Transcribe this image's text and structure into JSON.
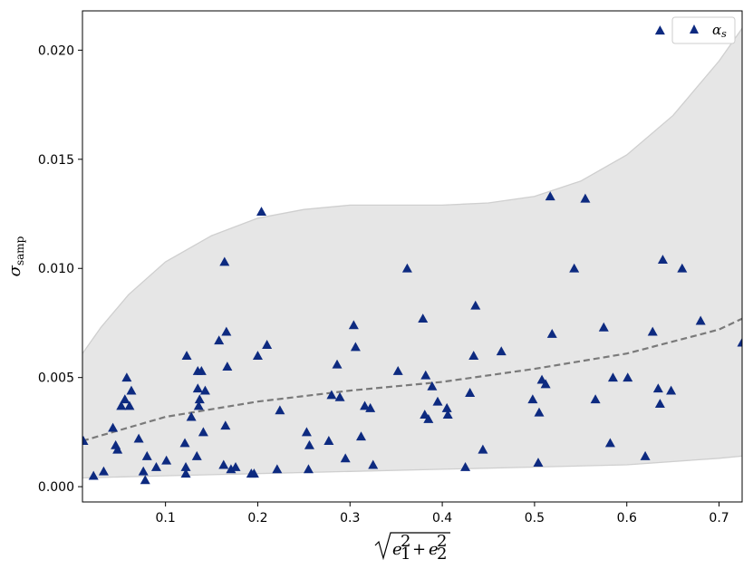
{
  "chart_data": {
    "type": "scatter",
    "title": "",
    "xlabel": "√(e₁² + e₂²)",
    "ylabel": "σ_samp",
    "xlim": [
      0.01,
      0.725
    ],
    "ylim": [
      -0.0007,
      0.0218
    ],
    "x_ticks": [
      0.1,
      0.2,
      0.3,
      0.4,
      0.5,
      0.6,
      0.7
    ],
    "x_tick_labels": [
      "0.1",
      "0.2",
      "0.3",
      "0.4",
      "0.5",
      "0.6",
      "0.7"
    ],
    "y_ticks": [
      0.0,
      0.005,
      0.01,
      0.015,
      0.02
    ],
    "y_tick_labels": [
      "0.000",
      "0.005",
      "0.010",
      "0.015",
      "0.020"
    ],
    "legend": {
      "position": "top-right",
      "entries": [
        {
          "label": "α_s",
          "marker": "triangle",
          "color": "#0d2a80"
        }
      ]
    },
    "colors": {
      "marker": "#0d2a80",
      "band_fill": "#e6e6e6",
      "band_edge": "#cfcfcf",
      "trend_line": "#7a7a7a"
    },
    "series": [
      {
        "name": "α_s",
        "marker": "triangle",
        "points": [
          [
            0.011,
            0.0021
          ],
          [
            0.022,
            0.0005
          ],
          [
            0.033,
            0.0007
          ],
          [
            0.043,
            0.0027
          ],
          [
            0.046,
            0.0019
          ],
          [
            0.048,
            0.0017
          ],
          [
            0.052,
            0.0037
          ],
          [
            0.056,
            0.004
          ],
          [
            0.058,
            0.005
          ],
          [
            0.061,
            0.0037
          ],
          [
            0.063,
            0.0044
          ],
          [
            0.071,
            0.0022
          ],
          [
            0.076,
            0.0007
          ],
          [
            0.078,
            0.0003
          ],
          [
            0.08,
            0.0014
          ],
          [
            0.09,
            0.0009
          ],
          [
            0.101,
            0.0012
          ],
          [
            0.121,
            0.002
          ],
          [
            0.122,
            0.0009
          ],
          [
            0.122,
            0.0006
          ],
          [
            0.123,
            0.006
          ],
          [
            0.128,
            0.0032
          ],
          [
            0.134,
            0.0014
          ],
          [
            0.135,
            0.0053
          ],
          [
            0.135,
            0.0045
          ],
          [
            0.136,
            0.0037
          ],
          [
            0.137,
            0.004
          ],
          [
            0.139,
            0.0053
          ],
          [
            0.141,
            0.0025
          ],
          [
            0.143,
            0.0044
          ],
          [
            0.158,
            0.0067
          ],
          [
            0.163,
            0.001
          ],
          [
            0.164,
            0.0103
          ],
          [
            0.165,
            0.0028
          ],
          [
            0.166,
            0.0071
          ],
          [
            0.167,
            0.0055
          ],
          [
            0.171,
            0.0008
          ],
          [
            0.176,
            0.0009
          ],
          [
            0.193,
            0.0006
          ],
          [
            0.196,
            0.0006
          ],
          [
            0.2,
            0.006
          ],
          [
            0.204,
            0.0126
          ],
          [
            0.21,
            0.0065
          ],
          [
            0.221,
            0.0008
          ],
          [
            0.224,
            0.0035
          ],
          [
            0.253,
            0.0025
          ],
          [
            0.255,
            0.0008
          ],
          [
            0.256,
            0.0019
          ],
          [
            0.277,
            0.0021
          ],
          [
            0.28,
            0.0042
          ],
          [
            0.286,
            0.0056
          ],
          [
            0.289,
            0.0041
          ],
          [
            0.295,
            0.0013
          ],
          [
            0.304,
            0.0074
          ],
          [
            0.306,
            0.0064
          ],
          [
            0.312,
            0.0023
          ],
          [
            0.316,
            0.0037
          ],
          [
            0.322,
            0.0036
          ],
          [
            0.325,
            0.001
          ],
          [
            0.352,
            0.0053
          ],
          [
            0.362,
            0.01
          ],
          [
            0.379,
            0.0077
          ],
          [
            0.381,
            0.0033
          ],
          [
            0.382,
            0.0051
          ],
          [
            0.385,
            0.0031
          ],
          [
            0.389,
            0.0046
          ],
          [
            0.395,
            0.0039
          ],
          [
            0.405,
            0.0036
          ],
          [
            0.406,
            0.0033
          ],
          [
            0.425,
            0.0009
          ],
          [
            0.43,
            0.0043
          ],
          [
            0.434,
            0.006
          ],
          [
            0.436,
            0.0083
          ],
          [
            0.444,
            0.0017
          ],
          [
            0.464,
            0.0062
          ],
          [
            0.498,
            0.004
          ],
          [
            0.504,
            0.0011
          ],
          [
            0.505,
            0.0034
          ],
          [
            0.508,
            0.0049
          ],
          [
            0.512,
            0.0047
          ],
          [
            0.517,
            0.0133
          ],
          [
            0.519,
            0.007
          ],
          [
            0.543,
            0.01
          ],
          [
            0.555,
            0.0132
          ],
          [
            0.566,
            0.004
          ],
          [
            0.575,
            0.0073
          ],
          [
            0.582,
            0.002
          ],
          [
            0.585,
            0.005
          ],
          [
            0.601,
            0.005
          ],
          [
            0.62,
            0.0014
          ],
          [
            0.628,
            0.0071
          ],
          [
            0.634,
            0.0045
          ],
          [
            0.636,
            0.0209
          ],
          [
            0.636,
            0.0038
          ],
          [
            0.639,
            0.0104
          ],
          [
            0.648,
            0.0044
          ],
          [
            0.66,
            0.01
          ],
          [
            0.68,
            0.0076
          ],
          [
            0.725,
            0.0066
          ]
        ]
      }
    ],
    "trend_line": {
      "style": "dashed",
      "points": [
        [
          0.01,
          0.0021
        ],
        [
          0.1,
          0.0032
        ],
        [
          0.2,
          0.0039
        ],
        [
          0.3,
          0.0044
        ],
        [
          0.4,
          0.0048
        ],
        [
          0.5,
          0.0054
        ],
        [
          0.6,
          0.0061
        ],
        [
          0.7,
          0.0072
        ],
        [
          0.725,
          0.0077
        ]
      ]
    },
    "band": {
      "upper": [
        [
          0.01,
          0.0061
        ],
        [
          0.03,
          0.0073
        ],
        [
          0.06,
          0.0088
        ],
        [
          0.1,
          0.0103
        ],
        [
          0.15,
          0.0115
        ],
        [
          0.2,
          0.0123
        ],
        [
          0.25,
          0.0127
        ],
        [
          0.3,
          0.0129
        ],
        [
          0.35,
          0.0129
        ],
        [
          0.4,
          0.0129
        ],
        [
          0.45,
          0.013
        ],
        [
          0.5,
          0.0133
        ],
        [
          0.55,
          0.014
        ],
        [
          0.6,
          0.0152
        ],
        [
          0.65,
          0.017
        ],
        [
          0.7,
          0.0195
        ],
        [
          0.725,
          0.021
        ]
      ],
      "lower": [
        [
          0.01,
          0.0004
        ],
        [
          0.1,
          0.0005
        ],
        [
          0.2,
          0.0006
        ],
        [
          0.3,
          0.0007
        ],
        [
          0.4,
          0.0008
        ],
        [
          0.5,
          0.0009
        ],
        [
          0.6,
          0.001
        ],
        [
          0.7,
          0.0013
        ],
        [
          0.725,
          0.0014
        ]
      ]
    }
  }
}
